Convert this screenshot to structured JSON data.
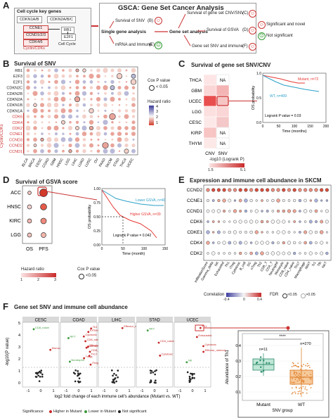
{
  "panelA": {
    "label": "A",
    "keygenes_title": "Cell cycle key genes",
    "cdkn1": "CDKN1A/B",
    "cdkn2": "CDKN2A/B/C",
    "ccne1": "CCNE1",
    "ccnd": "CCND1/2/3",
    "cdk46": "CDK4/6",
    "rb1": "RB1",
    "e2f": "E2F1",
    "cellcycle": "Cell Cycle",
    "cyclin": "Cyclin/CDKs",
    "gsca_title": "GSCA: Gene Set Cancer Analysis",
    "single": "Single gene analysis",
    "geneset": "Gene set analysis",
    "surv_snv": "Survival of SNV",
    "mrna": "mRNA and Immune",
    "surv_set": "Survival of gene set CNV/SNV",
    "surv_gsva": "Survival of GSVA",
    "set_snv": "Gene set SNV and immune",
    "tag_b": "(B)",
    "tag_e": "(E)",
    "tag_c": "(C)",
    "tag_d": "(D)",
    "tag_f": "(F)",
    "legend_sig": "Significant and novel",
    "legend_nsig": "Not significant"
  },
  "panelB": {
    "label": "B",
    "title": "Survival of SNV",
    "genes": [
      "RB1",
      "E2F3",
      "E2F1",
      "CDKN2C",
      "CDKN2B",
      "CDKN2A",
      "CDKN1B",
      "CDKN1A",
      "CDK6",
      "CDK4",
      "CDK2",
      "CCNE1",
      "CCND3",
      "CCND2",
      "CCND1"
    ],
    "cancers": [
      "BLCA",
      "BRCA",
      "CESC",
      "COAD",
      "GBM",
      "HNSC",
      "LGG",
      "LIHC",
      "LUAD",
      "LUSC",
      "OV",
      "PAAD",
      "SKCM",
      "STAD",
      "THCA",
      "UCEC"
    ],
    "cox_label": "Cox P value",
    "cox_val": "< 0.05",
    "hr_label": "Hazard ratio",
    "hr_ticks": [
      "4",
      "3",
      "2",
      "1"
    ],
    "side": "Cyclin/CDKs"
  },
  "panelC": {
    "label": "C",
    "title": "Survival of gene set SNV/CNV",
    "cancers": [
      "THCA",
      "GBM",
      "UCEC",
      "LGG",
      "CESC",
      "KIRP",
      "THYM"
    ],
    "cols": [
      "CNV",
      "SNV"
    ],
    "na": "NA",
    "legend": "-log10 (Logrank P)",
    "leg_min": "1.5",
    "leg_max": "5.1",
    "km_ylabel": "OS probability",
    "km_xlabel": "Time (months)",
    "mutant": "Mutant, n=72",
    "wt": "WT, n=409",
    "pval": "Logrank P value = 0.03",
    "xticks": [
      "0",
      "50",
      "100",
      "150",
      "200"
    ],
    "yticks": [
      "0.0",
      "0.5",
      "1.0"
    ]
  },
  "panelD": {
    "label": "D",
    "title": "Survival of GSVA score",
    "cancers": [
      "ACC",
      "HNSC",
      "KIRC",
      "LGG"
    ],
    "cols": [
      "OS",
      "PFS"
    ],
    "lower": "Lower GSVA, n=40",
    "higher": "Higher GSVA, n=39",
    "pval": "Logrank P value = 0.042",
    "km_ylabel": "OS probability",
    "km_xlabel": "Time (month)",
    "xticks": [
      "0",
      "50",
      "100",
      "150"
    ],
    "yticks": [
      "0.00",
      "0.25",
      "0.50",
      "0.75",
      "1.00"
    ],
    "hr_label": "Hazard ratio",
    "hr_ticks": [
      "1",
      "2",
      "3"
    ],
    "cox_label": "Cox P value",
    "cox_val": "<0.05"
  },
  "panelE": {
    "label": "E",
    "title": "Expression and immune cell abundance in SKCM",
    "genes": [
      "CCND2",
      "CCNE1",
      "CCND1",
      "CDK6",
      "CDKE1",
      "CDK4",
      "CDK2"
    ],
    "cells": [
      "InfiltrationScore",
      "Gamma_delta",
      "NK",
      "Exhausted",
      "Th1",
      "iTreg",
      "Cytotoxic",
      "B_cell",
      "DC",
      "nTreg",
      "Th2",
      "CD8_T",
      "CD4_T",
      "Neutrophil",
      "Monocyte",
      "CD8_naive",
      "CD4_naive",
      "Th17",
      "Macrophage",
      "MAIT",
      "Tr1",
      "Tfh",
      "NKT"
    ],
    "corr_label": "Correlation",
    "corr_ticks": [
      "-0.4",
      "0",
      "0.4"
    ],
    "fdr_label": "FDR",
    "fdr_a": "<0.05",
    "fdr_b": ">0.05"
  },
  "panelF": {
    "label": "F",
    "title": "Gene set SNV and immune cell abundance",
    "facets": [
      "CESC",
      "COAD",
      "LIHC",
      "STAD",
      "UCEC"
    ],
    "ylabel": "-log10(P value)",
    "xlabel": "log2 fold change of each immune cell's abundance (Mutant vs. WT)",
    "yticks": [
      "0",
      "1",
      "2",
      "3",
      "4",
      "5"
    ],
    "xticks": [
      "-1",
      "0",
      "1"
    ],
    "labels": {
      "coad": [
        "Th1",
        "Exhausted",
        "Cytotoxic",
        "NKT",
        "CD8_naive",
        "Effector_memory",
        "InfiltrationScore",
        "CD8_T",
        "Th17",
        "Tregs",
        "Neutrophil",
        "iTreg"
      ],
      "cesc": [
        "CD8_naive",
        "Monocyte"
      ],
      "lihc": [
        "Effector_memory"
      ],
      "stad": [
        "NKT",
        "CD4_naive",
        "Cytotoxic"
      ],
      "ucec": [
        "Th1",
        "Exhausted",
        "Cytotoxic",
        "Effector_memory",
        "NK"
      ]
    },
    "legend_title": "Significance",
    "leg_higher": "Higher in Mutant",
    "leg_lower": "Lower in Mutant",
    "leg_ns": "Not significant",
    "box_ylabel": "Abundance of Th1",
    "box_xlabel": "SNV group",
    "groups": [
      "Mutant",
      "WT"
    ],
    "n_mut": "n=11",
    "n_wt": "n=270",
    "sig": "****",
    "box_yticks": [
      "0.1",
      "0.2",
      "0.3",
      "0.4"
    ]
  }
}
